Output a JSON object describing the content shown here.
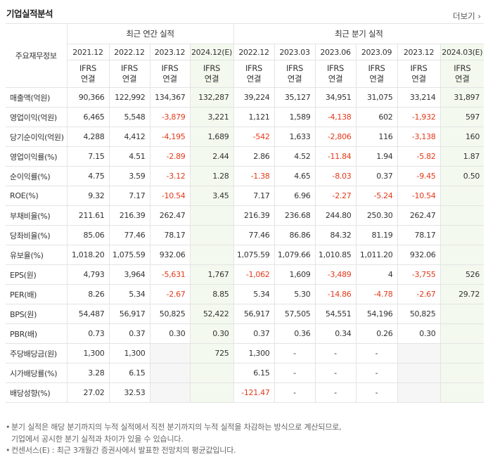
{
  "header": {
    "title": "기업실적분석",
    "more": "더보기"
  },
  "table": {
    "row_header": "주요재무정보",
    "groups": [
      {
        "label": "최근 연간 실적",
        "span": 4
      },
      {
        "label": "최근 분기 실적",
        "span": 6
      }
    ],
    "periods": [
      "2021.12",
      "2022.12",
      "2023.12",
      "2024.12(E)",
      "2022.12",
      "2023.03",
      "2023.06",
      "2023.09",
      "2023.12",
      "2024.03(E)"
    ],
    "standard": [
      "IFRS",
      "연결"
    ],
    "rows": [
      {
        "label": "매출액(억원)",
        "cells": [
          "90,366",
          "122,992",
          "134,367",
          "132,287",
          "39,224",
          "35,127",
          "34,951",
          "31,075",
          "33,214",
          "31,897"
        ]
      },
      {
        "label": "영업이익(억원)",
        "cells": [
          "6,465",
          "5,548",
          "-3,879",
          "3,221",
          "1,121",
          "1,589",
          "-4,138",
          "602",
          "-1,932",
          "597"
        ]
      },
      {
        "label": "당기순이익(억원)",
        "cells": [
          "4,288",
          "4,412",
          "-4,195",
          "1,689",
          "-542",
          "1,633",
          "-2,806",
          "116",
          "-3,138",
          "160"
        ]
      },
      {
        "label": "영업이익률(%)",
        "cells": [
          "7.15",
          "4.51",
          "-2.89",
          "2.44",
          "2.86",
          "4.52",
          "-11.84",
          "1.94",
          "-5.82",
          "1.87"
        ]
      },
      {
        "label": "순이익률(%)",
        "cells": [
          "4.75",
          "3.59",
          "-3.12",
          "1.28",
          "-1.38",
          "4.65",
          "-8.03",
          "0.37",
          "-9.45",
          "0.50"
        ]
      },
      {
        "label": "ROE(%)",
        "cells": [
          "9.32",
          "7.17",
          "-10.54",
          "3.45",
          "7.17",
          "6.96",
          "-2.27",
          "-5.24",
          "-10.54",
          null
        ]
      },
      {
        "label": "부채비율(%)",
        "cells": [
          "211.61",
          "216.39",
          "262.47",
          null,
          "216.39",
          "236.68",
          "244.80",
          "250.30",
          "262.47",
          null
        ]
      },
      {
        "label": "당좌비율(%)",
        "cells": [
          "85.06",
          "77.46",
          "78.17",
          null,
          "77.46",
          "86.86",
          "84.32",
          "81.19",
          "78.17",
          null
        ]
      },
      {
        "label": "유보율(%)",
        "cells": [
          "1,018.20",
          "1,075.59",
          "932.06",
          null,
          "1,075.59",
          "1,079.66",
          "1,010.85",
          "1,011.20",
          "932.06",
          null
        ]
      },
      {
        "label": "EPS(원)",
        "cells": [
          "4,793",
          "3,964",
          "-5,631",
          "1,767",
          "-1,062",
          "1,609",
          "-3,489",
          "4",
          "-3,755",
          "526"
        ]
      },
      {
        "label": "PER(배)",
        "cells": [
          "8.26",
          "5.34",
          "-2.67",
          "8.85",
          "5.34",
          "5.30",
          "-14.86",
          "-4.78",
          "-2.67",
          "29.72"
        ]
      },
      {
        "label": "BPS(원)",
        "cells": [
          "54,487",
          "56,917",
          "50,825",
          "52,422",
          "56,917",
          "57,505",
          "54,551",
          "54,196",
          "50,825",
          null
        ]
      },
      {
        "label": "PBR(배)",
        "cells": [
          "0.73",
          "0.37",
          "0.30",
          "0.30",
          "0.37",
          "0.36",
          "0.34",
          "0.26",
          "0.30",
          null
        ]
      },
      {
        "label": "주당배당금(원)",
        "cells": [
          "1,300",
          "1,300",
          null,
          "725",
          "1,300",
          "-",
          "-",
          "-",
          null,
          null
        ]
      },
      {
        "label": "시가배당률(%)",
        "cells": [
          "3.28",
          "6.15",
          null,
          null,
          "6.15",
          "-",
          "-",
          "-",
          null,
          null
        ]
      },
      {
        "label": "배당성향(%)",
        "cells": [
          "27.02",
          "32.53",
          null,
          null,
          "-121.47",
          "-",
          "-",
          "-",
          null,
          null
        ]
      }
    ]
  },
  "notes": [
    [
      "분기 실적은 해당 분기까지의 누적 실적에서 직전 분기까지의 누적 실적을 차감하는 방식으로 계산되므로,",
      "기업에서 공시한 분기 실적과 차이가 있을 수 있습니다."
    ],
    [
      "컨센서스(E) : 최근 3개월간 증권사에서 발표한 전망치의 평균값입니다."
    ]
  ]
}
